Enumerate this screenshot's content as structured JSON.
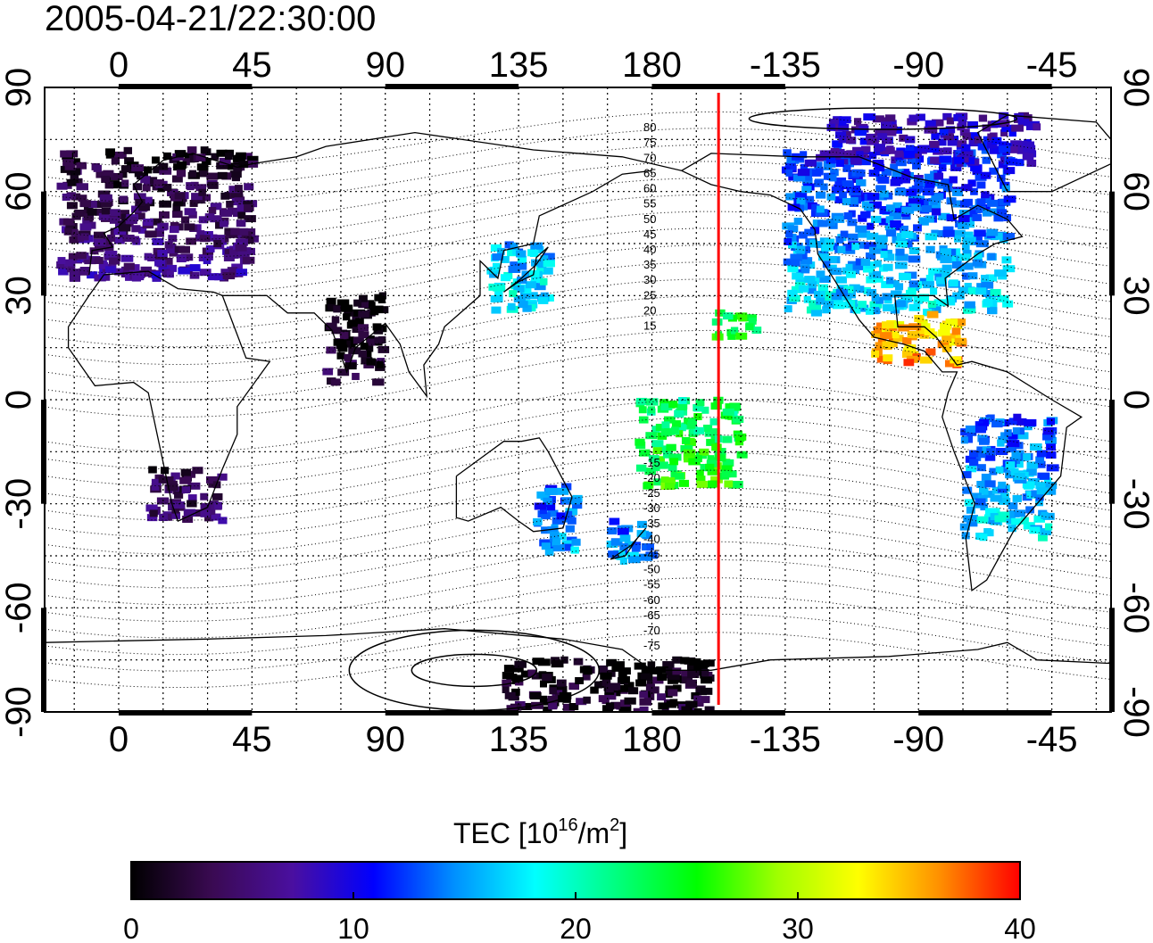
{
  "title": "2005-04-21/22:30:00",
  "map": {
    "lon_ticks_top": [
      "0",
      "45",
      "90",
      "135",
      "180",
      "-135",
      "-90",
      "-45"
    ],
    "lon_ticks_bottom": [
      "0",
      "45",
      "90",
      "135",
      "180",
      "-135",
      "-90",
      "-45"
    ],
    "lat_ticks": [
      "90",
      "60",
      "30",
      "0",
      "-30",
      "-60",
      "-90"
    ],
    "lat_ticks_right": [
      "90",
      "60",
      "30",
      "0",
      "-30",
      "-60",
      "-90"
    ],
    "lon_range": [
      -25,
      335
    ],
    "lat_range": [
      -90,
      90
    ],
    "grid": "dotted, 15 degree",
    "meridian_marker": {
      "lon": 202.5,
      "color": "#ff0000"
    },
    "mag_lat_labels_north": [
      "80",
      "75",
      "70",
      "65",
      "60",
      "55",
      "50",
      "45",
      "40",
      "35",
      "30",
      "25",
      "20",
      "15"
    ],
    "mag_lat_labels_south": [
      "-15",
      "-20",
      "-25",
      "-30",
      "-35",
      "-40",
      "-45",
      "-50",
      "-55",
      "-60",
      "-65",
      "-70",
      "-75"
    ]
  },
  "colorbar": {
    "label": "TEC  [10",
    "label_exp": "16",
    "label_mid": "/m",
    "label_exp2": "2",
    "label_end": "]",
    "range": [
      0,
      40
    ],
    "ticks": [
      "0",
      "10",
      "20",
      "30",
      "40"
    ],
    "colors": [
      "#000000",
      "#3a0a52",
      "#4a0fa0",
      "#0000ff",
      "#0090ff",
      "#00ffff",
      "#00ff80",
      "#00ff00",
      "#a0ff00",
      "#ffff00",
      "#ff9000",
      "#ff0000"
    ]
  },
  "tec_regions": [
    {
      "name": "europe",
      "lon": [
        -20,
        45
      ],
      "lat": [
        35,
        72
      ],
      "tec": 4
    },
    {
      "name": "north-america",
      "lon": [
        225,
        300
      ],
      "lat": [
        25,
        72
      ],
      "tec": 14
    },
    {
      "name": "central-america",
      "lon": [
        255,
        285
      ],
      "lat": [
        10,
        25
      ],
      "tec": 35
    },
    {
      "name": "japan",
      "lon": [
        125,
        145
      ],
      "lat": [
        25,
        45
      ],
      "tec": 17
    },
    {
      "name": "new-zealand",
      "lon": [
        165,
        180
      ],
      "lat": [
        -47,
        -35
      ],
      "tec": 14
    },
    {
      "name": "australia-east",
      "lon": [
        140,
        155
      ],
      "lat": [
        -45,
        -25
      ],
      "tec": 14
    },
    {
      "name": "south-america",
      "lon": [
        285,
        315
      ],
      "lat": [
        -40,
        -5
      ],
      "tec": 15
    },
    {
      "name": "pacific-islands",
      "lon": [
        175,
        210
      ],
      "lat": [
        -25,
        0
      ],
      "tec": 24
    },
    {
      "name": "hawaii",
      "lon": [
        200,
        215
      ],
      "lat": [
        18,
        25
      ],
      "tec": 24
    },
    {
      "name": "africa-south",
      "lon": [
        10,
        35
      ],
      "lat": [
        -35,
        -20
      ],
      "tec": 4
    },
    {
      "name": "india",
      "lon": [
        70,
        90
      ],
      "lat": [
        5,
        30
      ],
      "tec": 1
    },
    {
      "name": "canada-north",
      "lon": [
        240,
        310
      ],
      "lat": [
        68,
        82
      ],
      "tec": 9
    },
    {
      "name": "antarctica",
      "lon": [
        130,
        200
      ],
      "lat": [
        -90,
        -75
      ],
      "tec": 1
    }
  ]
}
